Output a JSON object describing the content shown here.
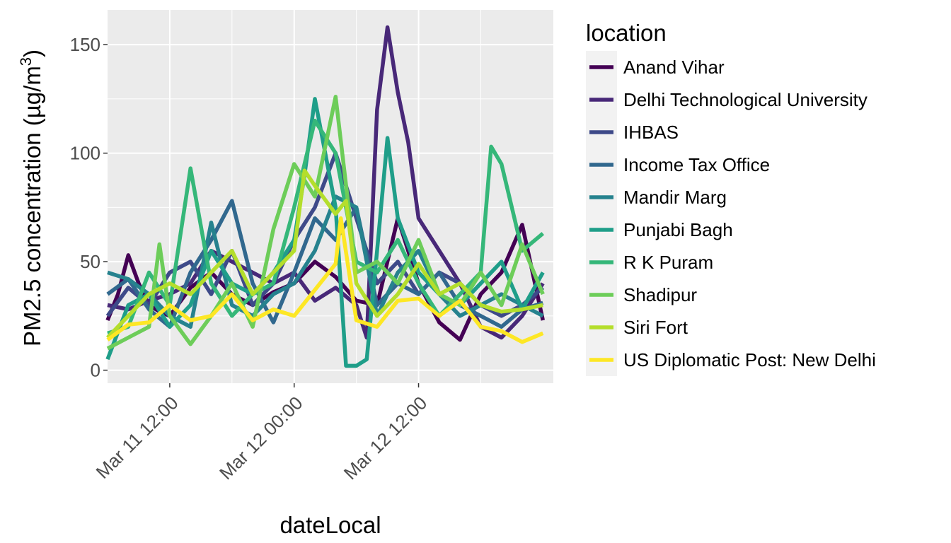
{
  "chart_data": {
    "type": "line",
    "x_unit": "datetime",
    "xlabel": "dateLocal",
    "ylabel": "PM2.5 concentration (µg/m",
    "ylabel_superscript": "3",
    "ylabel_suffix": ")",
    "xlim": [
      "2016-03-11 06:00",
      "2016-03-13 01:00"
    ],
    "ylim": [
      -6,
      166
    ],
    "x_ticks": [
      {
        "value": "2016-03-11 12:00",
        "label": "Mar 11 12:00"
      },
      {
        "value": "2016-03-12 00:00",
        "label": "Mar 12 00:00"
      },
      {
        "value": "2016-03-12 12:00",
        "label": "Mar 12 12:00"
      }
    ],
    "y_ticks": [
      0,
      50,
      100,
      150
    ],
    "grid": true,
    "legend": {
      "title": "location",
      "position": "right"
    },
    "series": [
      {
        "name": "Anand Vihar",
        "color": "#440154",
        "x": [
          "2016-03-11 06:00",
          "2016-03-11 07:00",
          "2016-03-11 08:00",
          "2016-03-11 09:00",
          "2016-03-11 10:00",
          "2016-03-11 11:00",
          "2016-03-11 12:00",
          "2016-03-11 14:00",
          "2016-03-11 16:00",
          "2016-03-11 18:00",
          "2016-03-11 20:00",
          "2016-03-11 22:00",
          "2016-03-12 00:00",
          "2016-03-12 02:00",
          "2016-03-12 04:00",
          "2016-03-12 06:00",
          "2016-03-12 08:00",
          "2016-03-12 10:00",
          "2016-03-12 12:00",
          "2016-03-12 14:00",
          "2016-03-12 16:00",
          "2016-03-12 18:00",
          "2016-03-12 20:00",
          "2016-03-12 22:00",
          "2016-03-13 00:00"
        ],
        "y": [
          23,
          35,
          53,
          40,
          30,
          27,
          25,
          38,
          45,
          35,
          30,
          36,
          40,
          50,
          43,
          32,
          30,
          70,
          40,
          22,
          14,
          35,
          45,
          67,
          23
        ]
      },
      {
        "name": "Delhi Technological University",
        "color": "#482878",
        "x": [
          "2016-03-11 06:00",
          "2016-03-11 08:00",
          "2016-03-11 10:00",
          "2016-03-11 12:00",
          "2016-03-11 14:00",
          "2016-03-11 16:00",
          "2016-03-11 18:00",
          "2016-03-11 20:00",
          "2016-03-11 22:00",
          "2016-03-12 00:00",
          "2016-03-12 02:00",
          "2016-03-12 04:00",
          "2016-03-12 06:00",
          "2016-03-12 07:00",
          "2016-03-12 08:00",
          "2016-03-12 09:00",
          "2016-03-12 10:00",
          "2016-03-12 11:00",
          "2016-03-12 12:00",
          "2016-03-12 14:00",
          "2016-03-12 16:00",
          "2016-03-12 18:00",
          "2016-03-12 20:00",
          "2016-03-12 22:00",
          "2016-03-13 00:00"
        ],
        "y": [
          30,
          28,
          32,
          35,
          40,
          55,
          50,
          45,
          40,
          45,
          32,
          38,
          30,
          15,
          120,
          158,
          128,
          105,
          70,
          55,
          40,
          20,
          15,
          25,
          40
        ]
      },
      {
        "name": "IHBAS",
        "color": "#3E4A89",
        "x": [
          "2016-03-11 06:00",
          "2016-03-11 08:00",
          "2016-03-11 10:00",
          "2016-03-11 12:00",
          "2016-03-11 14:00",
          "2016-03-11 16:00",
          "2016-03-11 18:00",
          "2016-03-11 20:00",
          "2016-03-11 22:00",
          "2016-03-12 00:00",
          "2016-03-12 02:00",
          "2016-03-12 04:00",
          "2016-03-12 06:00",
          "2016-03-12 08:00",
          "2016-03-12 10:00",
          "2016-03-12 12:00",
          "2016-03-12 14:00",
          "2016-03-12 16:00",
          "2016-03-12 18:00",
          "2016-03-12 20:00",
          "2016-03-12 22:00",
          "2016-03-13 00:00"
        ],
        "y": [
          25,
          38,
          30,
          45,
          50,
          35,
          55,
          30,
          40,
          60,
          75,
          100,
          70,
          40,
          50,
          35,
          45,
          40,
          30,
          25,
          30,
          38
        ]
      },
      {
        "name": "Income Tax Office",
        "color": "#31688E",
        "x": [
          "2016-03-11 06:00",
          "2016-03-11 08:00",
          "2016-03-11 10:00",
          "2016-03-11 12:00",
          "2016-03-11 14:00",
          "2016-03-11 16:00",
          "2016-03-11 18:00",
          "2016-03-11 20:00",
          "2016-03-11 22:00",
          "2016-03-12 00:00",
          "2016-03-12 02:00",
          "2016-03-12 04:00",
          "2016-03-12 06:00",
          "2016-03-12 08:00",
          "2016-03-12 10:00",
          "2016-03-12 12:00",
          "2016-03-12 14:00",
          "2016-03-12 16:00",
          "2016-03-12 18:00",
          "2016-03-12 20:00",
          "2016-03-12 22:00",
          "2016-03-13 00:00"
        ],
        "y": [
          35,
          42,
          28,
          20,
          45,
          60,
          78,
          40,
          22,
          45,
          70,
          60,
          75,
          30,
          40,
          35,
          45,
          30,
          25,
          20,
          28,
          31
        ]
      },
      {
        "name": "Mandir Marg",
        "color": "#26828E",
        "x": [
          "2016-03-11 06:00",
          "2016-03-11 08:00",
          "2016-03-11 10:00",
          "2016-03-11 12:00",
          "2016-03-11 14:00",
          "2016-03-11 16:00",
          "2016-03-11 18:00",
          "2016-03-11 20:00",
          "2016-03-11 22:00",
          "2016-03-12 00:00",
          "2016-03-12 02:00",
          "2016-03-12 04:00",
          "2016-03-12 06:00",
          "2016-03-12 08:00",
          "2016-03-12 10:00",
          "2016-03-12 12:00",
          "2016-03-12 14:00",
          "2016-03-12 16:00",
          "2016-03-12 18:00",
          "2016-03-12 20:00",
          "2016-03-12 22:00",
          "2016-03-13 00:00"
        ],
        "y": [
          45,
          42,
          35,
          25,
          20,
          68,
          30,
          25,
          35,
          40,
          55,
          80,
          75,
          25,
          45,
          55,
          35,
          25,
          30,
          35,
          30,
          25
        ]
      },
      {
        "name": "Punjabi Bagh",
        "color": "#1F9E89",
        "x": [
          "2016-03-11 06:00",
          "2016-03-11 08:00",
          "2016-03-11 10:00",
          "2016-03-11 12:00",
          "2016-03-11 14:00",
          "2016-03-11 16:00",
          "2016-03-11 18:00",
          "2016-03-11 20:00",
          "2016-03-11 22:00",
          "2016-03-12 00:00",
          "2016-03-12 01:00",
          "2016-03-12 02:00",
          "2016-03-12 04:00",
          "2016-03-12 05:00",
          "2016-03-12 06:00",
          "2016-03-12 07:00",
          "2016-03-12 08:00",
          "2016-03-12 09:00",
          "2016-03-12 10:00",
          "2016-03-12 12:00",
          "2016-03-12 14:00",
          "2016-03-12 16:00",
          "2016-03-12 18:00",
          "2016-03-12 20:00",
          "2016-03-12 22:00",
          "2016-03-13 00:00"
        ],
        "y": [
          5,
          30,
          35,
          20,
          30,
          55,
          40,
          35,
          45,
          60,
          90,
          125,
          75,
          2,
          2,
          5,
          55,
          107,
          70,
          45,
          35,
          30,
          40,
          50,
          28,
          45
        ]
      },
      {
        "name": "R K Puram",
        "color": "#35B779",
        "x": [
          "2016-03-11 06:00",
          "2016-03-11 08:00",
          "2016-03-11 10:00",
          "2016-03-11 12:00",
          "2016-03-11 14:00",
          "2016-03-11 16:00",
          "2016-03-11 18:00",
          "2016-03-11 20:00",
          "2016-03-11 22:00",
          "2016-03-12 00:00",
          "2016-03-12 02:00",
          "2016-03-12 04:00",
          "2016-03-12 06:00",
          "2016-03-12 08:00",
          "2016-03-12 10:00",
          "2016-03-12 12:00",
          "2016-03-12 14:00",
          "2016-03-12 16:00",
          "2016-03-12 18:00",
          "2016-03-12 19:00",
          "2016-03-12 20:00",
          "2016-03-12 22:00",
          "2016-03-13 00:00"
        ],
        "y": [
          17,
          20,
          45,
          30,
          93,
          40,
          25,
          35,
          40,
          75,
          115,
          100,
          50,
          45,
          60,
          40,
          25,
          35,
          45,
          103,
          95,
          55,
          63
        ]
      },
      {
        "name": "Shadipur",
        "color": "#6DCD59",
        "x": [
          "2016-03-11 06:00",
          "2016-03-11 08:00",
          "2016-03-11 10:00",
          "2016-03-11 11:00",
          "2016-03-11 12:00",
          "2016-03-11 14:00",
          "2016-03-11 16:00",
          "2016-03-11 18:00",
          "2016-03-11 20:00",
          "2016-03-11 22:00",
          "2016-03-12 00:00",
          "2016-03-12 02:00",
          "2016-03-12 04:00",
          "2016-03-12 06:00",
          "2016-03-12 08:00",
          "2016-03-12 10:00",
          "2016-03-12 12:00",
          "2016-03-12 14:00",
          "2016-03-12 16:00",
          "2016-03-12 18:00",
          "2016-03-12 20:00",
          "2016-03-12 22:00",
          "2016-03-13 00:00"
        ],
        "y": [
          10,
          15,
          20,
          58,
          25,
          12,
          25,
          40,
          20,
          65,
          95,
          80,
          126,
          45,
          50,
          40,
          60,
          35,
          30,
          45,
          30,
          58,
          35
        ]
      },
      {
        "name": "Siri Fort",
        "color": "#B4DE2C",
        "x": [
          "2016-03-11 06:00",
          "2016-03-11 08:00",
          "2016-03-11 10:00",
          "2016-03-11 12:00",
          "2016-03-11 14:00",
          "2016-03-11 16:00",
          "2016-03-11 18:00",
          "2016-03-11 20:00",
          "2016-03-11 22:00",
          "2016-03-12 00:00",
          "2016-03-12 01:00",
          "2016-03-12 02:00",
          "2016-03-12 04:00",
          "2016-03-12 05:00",
          "2016-03-12 06:00",
          "2016-03-12 08:00",
          "2016-03-12 10:00",
          "2016-03-12 12:00",
          "2016-03-12 14:00",
          "2016-03-12 16:00",
          "2016-03-12 18:00",
          "2016-03-12 20:00",
          "2016-03-12 22:00",
          "2016-03-13 00:00"
        ],
        "y": [
          15,
          25,
          35,
          40,
          35,
          45,
          55,
          35,
          45,
          55,
          92,
          85,
          72,
          78,
          40,
          25,
          35,
          49,
          35,
          40,
          30,
          27,
          28,
          30
        ]
      },
      {
        "name": "US Diplomatic Post: New Delhi",
        "color": "#FDE725",
        "x": [
          "2016-03-11 06:00",
          "2016-03-11 08:00",
          "2016-03-11 10:00",
          "2016-03-11 12:00",
          "2016-03-11 14:00",
          "2016-03-11 16:00",
          "2016-03-11 18:00",
          "2016-03-11 20:00",
          "2016-03-11 22:00",
          "2016-03-12 00:00",
          "2016-03-12 02:00",
          "2016-03-12 04:00",
          "2016-03-12 04:30",
          "2016-03-12 06:00",
          "2016-03-12 08:00",
          "2016-03-12 10:00",
          "2016-03-12 12:00",
          "2016-03-12 14:00",
          "2016-03-12 16:00",
          "2016-03-12 18:00",
          "2016-03-12 20:00",
          "2016-03-12 22:00",
          "2016-03-13 00:00"
        ],
        "y": [
          14,
          21,
          22,
          30,
          23,
          25,
          35,
          23,
          28,
          25,
          37,
          49,
          70,
          23,
          20,
          32,
          33,
          25,
          32,
          20,
          18,
          13,
          17
        ]
      }
    ]
  }
}
